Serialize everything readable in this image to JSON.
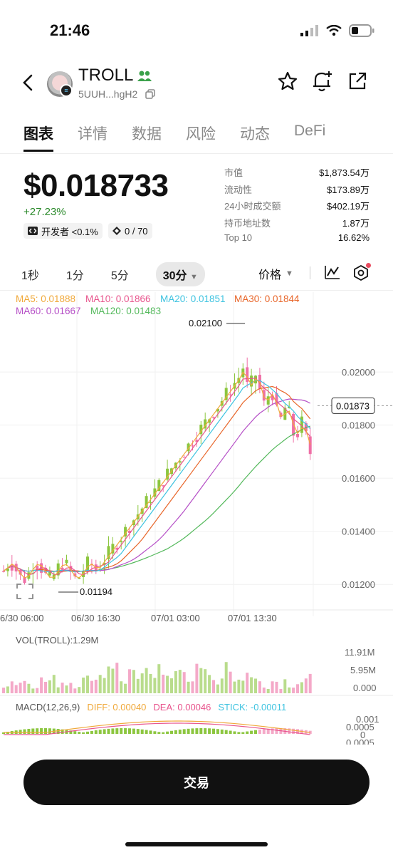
{
  "status": {
    "time": "21:46"
  },
  "header": {
    "token_name": "TROLL",
    "address": "5UUH...hgH2"
  },
  "tabs": [
    {
      "label": "图表",
      "active": true
    },
    {
      "label": "详情"
    },
    {
      "label": "数据"
    },
    {
      "label": "风险"
    },
    {
      "label": "动态"
    },
    {
      "label": "DeFi"
    }
  ],
  "price": {
    "value": "$0.018733",
    "change": "+27.23%"
  },
  "chips": {
    "dev": "开发者 <0.1%",
    "holders": "0 / 70"
  },
  "stats": [
    {
      "k": "市值",
      "v": "$1,873.54万"
    },
    {
      "k": "流动性",
      "v": "$173.89万"
    },
    {
      "k": "24小时成交额",
      "v": "$402.19万"
    },
    {
      "k": "持币地址数",
      "v": "1.87万"
    },
    {
      "k": "Top 10",
      "v": "16.62%"
    }
  ],
  "timeframes": [
    "1秒",
    "1分",
    "5分"
  ],
  "timeframe_active": "30分",
  "price_mode": "价格",
  "ma_legend": {
    "ma5": "MA5: 0.01888",
    "ma10": "MA10: 0.01866",
    "ma20": "MA20: 0.01851",
    "ma30": "MA30: 0.01844",
    "ma60": "MA60: 0.01667",
    "ma120": "MA120: 0.01483"
  },
  "colors": {
    "ma5": "#f0a93b",
    "ma10": "#e8558d",
    "ma20": "#3ec3e0",
    "ma30": "#e8662a",
    "ma60": "#b54ec6",
    "ma120": "#52b85a",
    "up": "#8cc63f",
    "down": "#ef6fa6"
  },
  "chart_data": {
    "type": "candlestick",
    "y_ticks": [
      "0.02000",
      "0.01800",
      "0.01600",
      "0.01400",
      "0.01200"
    ],
    "y_range": [
      0.0112,
      0.0218
    ],
    "x_ticks": [
      "6/30 06:00",
      "06/30 16:30",
      "07/01 03:00",
      "07/01 13:30"
    ],
    "high_label": "0.02100",
    "low_label": "0.01194",
    "current_price_label": "0.01873",
    "volume_label": "VOL(TROLL):1.29M",
    "volume_ticks": [
      "11.91M",
      "5.95M",
      "0.000"
    ],
    "macd_label": "MACD(12,26,9)",
    "macd_diff": "DIFF: 0.00040",
    "macd_dea": "DEA: 0.00046",
    "macd_stick": "STICK: -0.00011",
    "macd_ticks": [
      "0.001",
      "0.0005",
      "0",
      "0.0005"
    ]
  },
  "trade_button": "交易"
}
